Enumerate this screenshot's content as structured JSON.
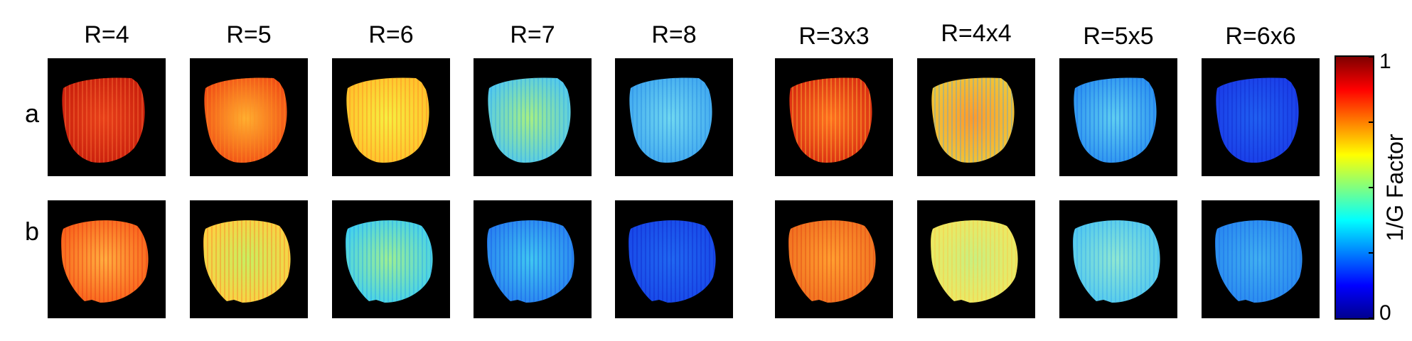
{
  "columns": [
    "R=4",
    "R=5",
    "R=6",
    "R=7",
    "R=8",
    "R=3x3",
    "R=4x4",
    "R=5x5",
    "R=6x6"
  ],
  "rows": [
    "a",
    "b"
  ],
  "colorbar": {
    "title": "1/G Factor",
    "max_label": "1",
    "min_label": "0",
    "colormap": "jet",
    "stops": [
      "#00008f",
      "#0000ff",
      "#0080ff",
      "#00ffff",
      "#80ff80",
      "#ffff00",
      "#ff8000",
      "#ff0000",
      "#7f0000"
    ]
  },
  "panel_background": "#000000",
  "maps": {
    "a": [
      {
        "base": "#c81e0c",
        "highlight": "#e8401a",
        "stripe": "#ff8040"
      },
      {
        "base": "#f04a14",
        "highlight": "#ffb030",
        "stripe": "#ff9020"
      },
      {
        "base": "#ffc02a",
        "highlight": "#f6f040",
        "stripe": "#ff7a20"
      },
      {
        "base": "#50c8f0",
        "highlight": "#a8f080",
        "stripe": "#2aa0e8"
      },
      {
        "base": "#40a8f0",
        "highlight": "#70d8f0",
        "stripe": "#2080e0"
      },
      {
        "base": "#d82a10",
        "highlight": "#ff7020",
        "stripe": "#ffd040"
      },
      {
        "base": "#f0c838",
        "highlight": "#ff9a2a",
        "stripe": "#40a0f0"
      },
      {
        "base": "#2a90f0",
        "highlight": "#60d0f0",
        "stripe": "#1060e8"
      },
      {
        "base": "#1a3ce8",
        "highlight": "#2060f0",
        "stripe": "#0a24c8"
      }
    ],
    "b": [
      {
        "base": "#f8601a",
        "highlight": "#ffb040",
        "stripe": "#e83010"
      },
      {
        "base": "#ffd040",
        "highlight": "#c8f060",
        "stripe": "#ff7020"
      },
      {
        "base": "#40d0f0",
        "highlight": "#9ff090",
        "stripe": "#2098f0"
      },
      {
        "base": "#2880f0",
        "highlight": "#40c8f0",
        "stripe": "#1050e8"
      },
      {
        "base": "#1848e8",
        "highlight": "#2068f0",
        "stripe": "#0a20c8"
      },
      {
        "base": "#f07020",
        "highlight": "#ffa030",
        "stripe": "#e03a10"
      },
      {
        "base": "#f0e860",
        "highlight": "#c8f080",
        "stripe": "#ffc040"
      },
      {
        "base": "#50c8f0",
        "highlight": "#90e8d0",
        "stripe": "#30a0f0"
      },
      {
        "base": "#2888f0",
        "highlight": "#40b0f0",
        "stripe": "#1860e8"
      }
    ]
  }
}
